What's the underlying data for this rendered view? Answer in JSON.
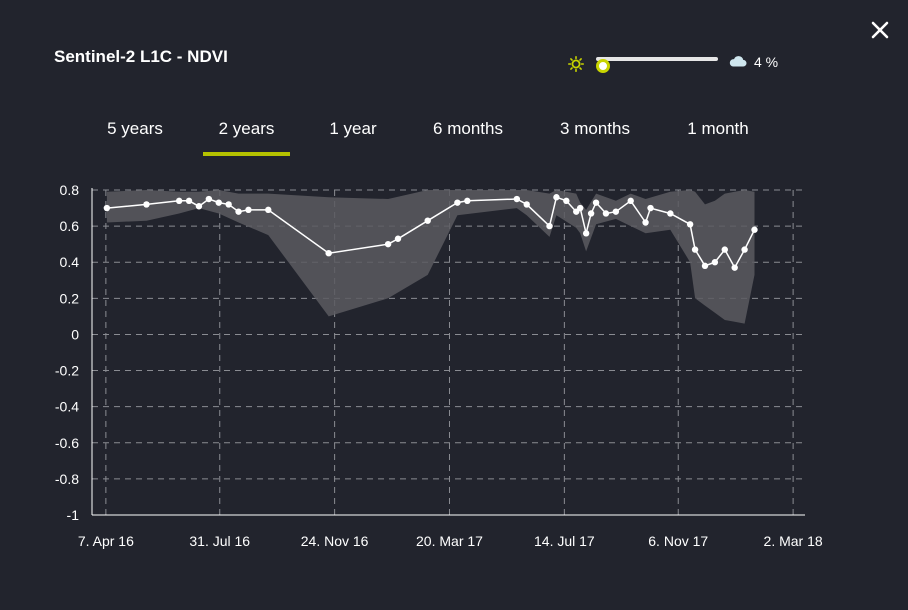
{
  "header": {
    "title": "Sentinel-2 L1C - NDVI",
    "close_icon": "close-icon"
  },
  "cloud_filter": {
    "sun_icon": "sun-icon",
    "cloud_icon": "cloud-icon",
    "value_fraction": 0.04,
    "value_label": "4 %",
    "accent_color": "#c8d400"
  },
  "tabs": [
    {
      "label": "5 years",
      "active": false
    },
    {
      "label": "2 years",
      "active": true
    },
    {
      "label": "1 year",
      "active": false
    },
    {
      "label": "6 months",
      "active": false
    },
    {
      "label": "3 months",
      "active": false
    },
    {
      "label": "1 month",
      "active": false
    }
  ],
  "colors": {
    "background": "#22242d",
    "tab_underline": "#b5c200",
    "band": "#5a5b60",
    "line": "#ffffff"
  },
  "chart_data": {
    "type": "line",
    "title": "",
    "xlabel": "",
    "ylabel": "",
    "ylim": [
      -1,
      0.8
    ],
    "yticks": [
      0.8,
      0.6,
      0.4,
      0.2,
      0,
      -0.2,
      -0.4,
      -0.6,
      -0.8,
      -1
    ],
    "ytick_labels": [
      "0.8",
      "0.6",
      "0.4",
      "0.2",
      "0",
      "-0.2",
      "-0.4",
      "-0.6",
      "-0.8",
      "-1"
    ],
    "xlim": [
      "2016-03-24",
      "2018-03-14"
    ],
    "xticks": [
      "2016-04-07",
      "2016-07-31",
      "2016-11-24",
      "2017-03-20",
      "2017-07-14",
      "2017-11-06",
      "2018-03-02"
    ],
    "xtick_labels": [
      "7. Apr 16",
      "31. Jul 16",
      "24. Nov 16",
      "20. Mar 17",
      "14. Jul 17",
      "6. Nov 17",
      "2. Mar 18"
    ],
    "grid": true,
    "legend": "none",
    "series": [
      {
        "x": [
          "2016-04-08",
          "2016-05-18",
          "2016-06-20",
          "2016-06-30",
          "2016-07-10",
          "2016-07-20",
          "2016-07-30",
          "2016-08-09",
          "2016-08-19",
          "2016-08-29",
          "2016-09-18",
          "2016-11-18",
          "2017-01-17",
          "2017-01-27",
          "2017-02-26",
          "2017-03-28",
          "2017-04-07",
          "2017-05-27",
          "2017-06-06",
          "2017-06-29",
          "2017-07-06",
          "2017-07-16",
          "2017-07-26",
          "2017-07-30",
          "2017-08-05",
          "2017-08-10",
          "2017-08-15",
          "2017-08-25",
          "2017-09-04",
          "2017-09-19",
          "2017-10-04",
          "2017-10-09",
          "2017-10-29",
          "2017-11-18",
          "2017-11-23",
          "2017-12-03",
          "2017-12-13",
          "2017-12-23",
          "2018-01-02",
          "2018-01-12",
          "2018-01-22"
        ],
        "values": [
          0.7,
          0.72,
          0.74,
          0.74,
          0.71,
          0.75,
          0.73,
          0.72,
          0.68,
          0.69,
          0.69,
          0.45,
          0.5,
          0.53,
          0.63,
          0.73,
          0.74,
          0.75,
          0.72,
          0.6,
          0.76,
          0.74,
          0.68,
          0.7,
          0.56,
          0.67,
          0.73,
          0.67,
          0.68,
          0.74,
          0.62,
          0.7,
          0.67,
          0.61,
          0.47,
          0.38,
          0.4,
          0.47,
          0.37,
          0.47,
          0.58
        ]
      }
    ],
    "band": {
      "x": [
        "2016-04-08",
        "2016-05-18",
        "2016-06-20",
        "2016-07-10",
        "2016-07-30",
        "2016-08-19",
        "2016-09-18",
        "2016-11-18",
        "2017-01-17",
        "2017-02-26",
        "2017-03-28",
        "2017-05-27",
        "2017-06-06",
        "2017-06-29",
        "2017-07-06",
        "2017-07-26",
        "2017-07-30",
        "2017-08-05",
        "2017-08-15",
        "2017-09-04",
        "2017-09-19",
        "2017-10-04",
        "2017-10-29",
        "2017-11-18",
        "2017-11-23",
        "2017-12-03",
        "2017-12-13",
        "2017-12-23",
        "2018-01-02",
        "2018-01-12",
        "2018-01-22"
      ],
      "upper": [
        0.79,
        0.8,
        0.79,
        0.79,
        0.8,
        0.78,
        0.78,
        0.76,
        0.75,
        0.8,
        0.8,
        0.8,
        0.8,
        0.78,
        0.8,
        0.78,
        0.73,
        0.69,
        0.78,
        0.74,
        0.78,
        0.75,
        0.79,
        0.8,
        0.79,
        0.72,
        0.74,
        0.78,
        0.79,
        0.8,
        0.79
      ],
      "lower": [
        0.62,
        0.63,
        0.67,
        0.7,
        0.67,
        0.62,
        0.55,
        0.1,
        0.2,
        0.33,
        0.66,
        0.7,
        0.66,
        0.54,
        0.66,
        0.59,
        0.56,
        0.46,
        0.61,
        0.64,
        0.6,
        0.56,
        0.58,
        0.4,
        0.2,
        0.16,
        0.12,
        0.08,
        0.07,
        0.06,
        0.33
      ]
    }
  }
}
